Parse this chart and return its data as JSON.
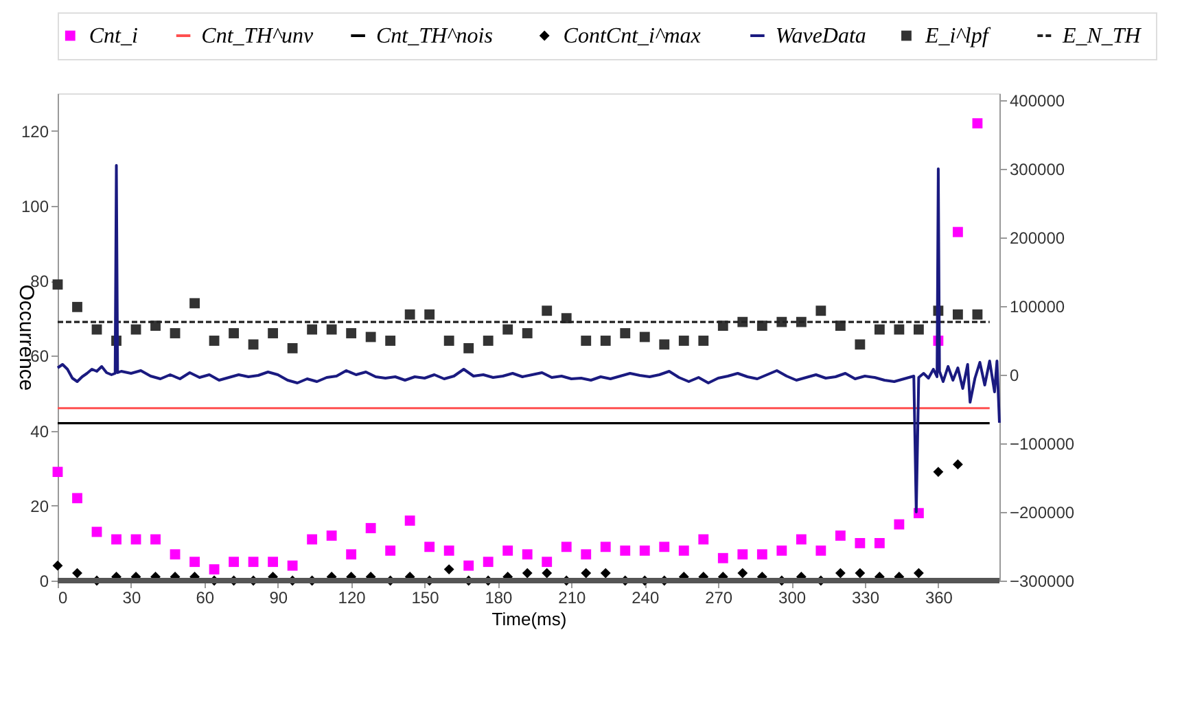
{
  "chart_data": {
    "type": "scatter",
    "xlabel": "Time(ms)",
    "ylabel": "Occurrence",
    "xlim": [
      0,
      385
    ],
    "xticks": [
      0,
      30,
      60,
      90,
      120,
      150,
      180,
      210,
      240,
      270,
      300,
      330,
      360
    ],
    "ylim": [
      0,
      130
    ],
    "yticks": [
      0,
      20,
      40,
      60,
      80,
      100,
      120
    ],
    "y2lim": [
      -300000,
      410000
    ],
    "y2ticks": [
      -300000,
      -200000,
      -100000,
      0,
      100000,
      200000,
      300000,
      400000
    ],
    "legend": "top",
    "ref_lines": [
      {
        "axis": "y",
        "value": 0,
        "color": "#555555"
      }
    ],
    "series": [
      {
        "name": "Cnt_i",
        "marker": "square",
        "color": "#ff00ff",
        "x": [
          0,
          8,
          16,
          24,
          32,
          40,
          48,
          56,
          64,
          72,
          80,
          88,
          96,
          104,
          112,
          120,
          128,
          136,
          144,
          152,
          160,
          168,
          176,
          184,
          192,
          200,
          208,
          216,
          224,
          232,
          240,
          248,
          256,
          264,
          272,
          280,
          288,
          296,
          304,
          312,
          320,
          328,
          336,
          344,
          352,
          360,
          368,
          376
        ],
        "values": [
          29,
          22,
          13,
          11,
          11,
          11,
          7,
          5,
          3,
          5,
          5,
          5,
          4,
          11,
          12,
          7,
          14,
          8,
          16,
          9,
          8,
          4,
          5,
          8,
          7,
          5,
          9,
          7,
          9,
          8,
          8,
          9,
          8,
          11,
          6,
          7,
          7,
          8,
          11,
          8,
          12,
          10,
          10,
          15,
          18,
          64,
          93,
          122
        ]
      },
      {
        "name": "Cnt_TH^unv",
        "type": "line",
        "color": "#ff5050",
        "x": [
          0,
          381
        ],
        "values": [
          46,
          46
        ]
      },
      {
        "name": "Cnt_TH^nois",
        "type": "line",
        "color": "#000000",
        "x": [
          0,
          381
        ],
        "values": [
          42,
          42
        ]
      },
      {
        "name": "ContCnt_i^max",
        "marker": "diamond",
        "color": "#000000",
        "x": [
          0,
          8,
          16,
          24,
          32,
          40,
          48,
          56,
          64,
          72,
          80,
          88,
          96,
          104,
          112,
          120,
          128,
          136,
          144,
          152,
          160,
          168,
          176,
          184,
          192,
          200,
          208,
          216,
          224,
          232,
          240,
          248,
          256,
          264,
          272,
          280,
          288,
          296,
          304,
          312,
          320,
          328,
          336,
          344,
          352,
          360,
          368
        ],
        "values": [
          4,
          2,
          0,
          1,
          1,
          1,
          1,
          1,
          0,
          0,
          0,
          1,
          0,
          0,
          1,
          1,
          1,
          0,
          1,
          0,
          3,
          0,
          0,
          1,
          2,
          2,
          0,
          2,
          2,
          0,
          0,
          0,
          1,
          1,
          1,
          2,
          1,
          0,
          1,
          0,
          2,
          2,
          1,
          1,
          2,
          29,
          31
        ]
      },
      {
        "name": "WaveData",
        "type": "line",
        "axis": "y2",
        "color": "#1a1a80",
        "x": [
          0,
          2,
          4,
          6,
          8,
          10,
          12,
          14,
          16,
          18,
          20,
          22,
          23.5,
          24,
          24.5,
          26,
          30,
          34,
          38,
          42,
          46,
          50,
          54,
          58,
          62,
          66,
          70,
          74,
          78,
          82,
          86,
          90,
          94,
          98,
          102,
          106,
          110,
          114,
          118,
          122,
          126,
          130,
          134,
          138,
          142,
          146,
          150,
          154,
          158,
          162,
          166,
          170,
          174,
          178,
          182,
          186,
          190,
          194,
          198,
          202,
          206,
          210,
          214,
          218,
          222,
          226,
          230,
          234,
          238,
          242,
          246,
          250,
          254,
          258,
          262,
          266,
          270,
          274,
          278,
          282,
          286,
          290,
          294,
          298,
          302,
          306,
          310,
          314,
          318,
          322,
          326,
          330,
          334,
          338,
          342,
          346,
          350,
          351,
          352,
          354,
          356,
          358,
          359.5,
          360,
          360.5,
          362,
          364,
          366,
          368,
          370,
          372,
          373,
          375,
          377,
          379,
          381,
          383,
          384,
          385
        ],
        "values": [
          10000,
          15000,
          8000,
          -5000,
          -10000,
          -3000,
          2000,
          8000,
          5000,
          12000,
          3000,
          0,
          2000,
          305000,
          3000,
          5000,
          2000,
          6000,
          -2000,
          -6000,
          0,
          -6000,
          3000,
          -4000,
          0,
          -8000,
          -4000,
          0,
          -3000,
          -1000,
          4000,
          0,
          -8000,
          -12000,
          -6000,
          -10000,
          -4000,
          -2000,
          6000,
          0,
          4000,
          -3000,
          -5000,
          -3000,
          -8000,
          -3000,
          -5000,
          0,
          -6000,
          -2000,
          8000,
          -2000,
          0,
          -4000,
          -2000,
          2000,
          -3000,
          0,
          3000,
          -4000,
          -2000,
          -6000,
          -5000,
          -8000,
          -3000,
          -6000,
          -2000,
          2000,
          -1000,
          -3000,
          0,
          5000,
          -4000,
          -10000,
          -4000,
          -12000,
          -5000,
          -2000,
          2000,
          -3000,
          -6000,
          0,
          6000,
          -2000,
          -8000,
          -4000,
          0,
          -5000,
          -3000,
          2000,
          -6000,
          -2000,
          -4000,
          -8000,
          -10000,
          -6000,
          -2000,
          -200000,
          -4000,
          2000,
          -5000,
          8000,
          -3000,
          300000,
          5000,
          -10000,
          12000,
          -8000,
          10000,
          -20000,
          15000,
          -40000,
          -5000,
          18000,
          -15000,
          20000,
          -25000,
          20000,
          -70000
        ]
      },
      {
        "name": "E_i^lpf",
        "marker": "square",
        "color": "#333333",
        "x": [
          0,
          8,
          16,
          24,
          32,
          40,
          48,
          56,
          64,
          72,
          80,
          88,
          96,
          104,
          112,
          120,
          128,
          136,
          144,
          152,
          160,
          168,
          176,
          184,
          192,
          200,
          208,
          216,
          224,
          232,
          240,
          248,
          256,
          264,
          272,
          280,
          288,
          296,
          304,
          312,
          320,
          328,
          336,
          344,
          352,
          360,
          368,
          376
        ],
        "values": [
          79,
          73,
          67,
          64,
          67,
          68,
          66,
          74,
          64,
          66,
          63,
          66,
          62,
          67,
          67,
          66,
          65,
          64,
          71,
          71,
          64,
          62,
          64,
          67,
          66,
          72,
          70,
          64,
          64,
          66,
          65,
          63,
          64,
          64,
          68,
          69,
          68,
          69,
          69,
          72,
          68,
          63,
          67,
          67,
          67,
          72,
          71,
          71
        ]
      },
      {
        "name": "E_N_TH",
        "type": "line",
        "line_style": "dashed",
        "color": "#222222",
        "x": [
          0,
          381
        ],
        "values": [
          69,
          69
        ]
      }
    ]
  }
}
